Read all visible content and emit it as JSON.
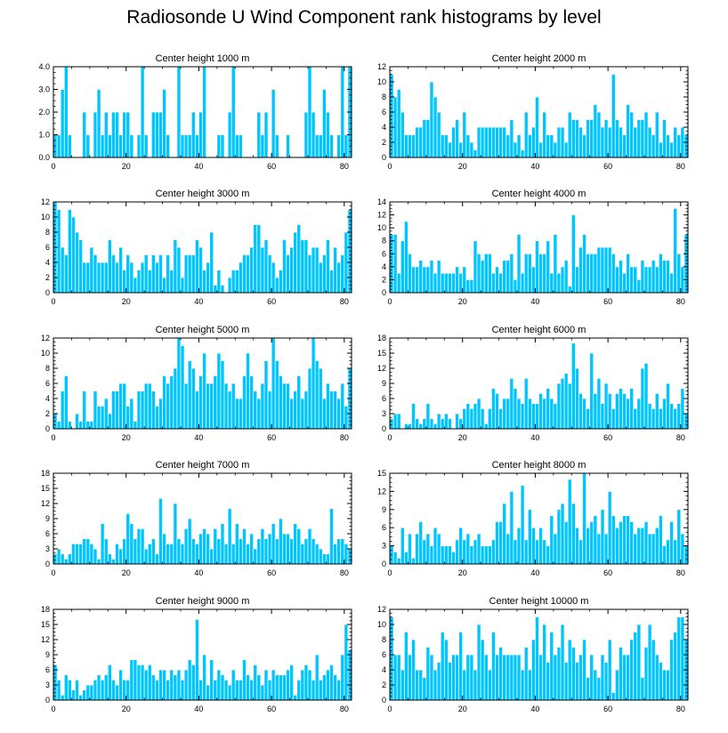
{
  "title": "Radiosonde U Wind Component rank histograms by level",
  "colors": {
    "bar": "#00c5ff",
    "bar_edge": "#ffffff",
    "axis": "#000000"
  },
  "chart_data": [
    {
      "type": "bar",
      "title": "Center height 1000 m",
      "x_start": 0,
      "xlim": [
        0,
        82
      ],
      "ylim": [
        0,
        4
      ],
      "xticks": [
        0,
        20,
        40,
        60,
        80
      ],
      "yticks": [
        0,
        1,
        2,
        3,
        4
      ],
      "ytick_labels": [
        "0.0",
        "1.0",
        "2.0",
        "3.0",
        "4.0"
      ],
      "values": [
        1,
        1,
        3,
        4,
        1,
        0,
        0,
        0,
        2,
        1,
        0,
        2,
        3,
        1,
        2,
        1,
        2,
        2,
        1,
        2,
        2,
        1,
        0,
        1,
        4,
        1,
        0,
        2,
        2,
        2,
        3,
        1,
        0,
        0,
        4,
        1,
        1,
        1,
        2,
        1,
        2,
        4,
        0,
        0,
        0,
        1,
        1,
        0,
        2,
        4,
        1,
        1,
        0,
        0,
        0,
        0,
        2,
        1,
        2,
        0,
        3,
        1,
        0,
        0,
        1,
        0,
        0,
        0,
        0,
        2,
        4,
        2,
        1,
        1,
        3,
        2,
        1,
        0,
        1,
        4,
        1,
        4
      ]
    },
    {
      "type": "bar",
      "title": "Center height 2000 m",
      "x_start": 0,
      "xlim": [
        0,
        82
      ],
      "ylim": [
        0,
        12
      ],
      "xticks": [
        0,
        20,
        40,
        60,
        80
      ],
      "yticks": [
        0,
        2,
        4,
        6,
        8,
        10,
        12
      ],
      "ytick_labels": [
        "0",
        "2",
        "4",
        "6",
        "8",
        "10",
        "12"
      ],
      "values": [
        11,
        8,
        9,
        6,
        3,
        3,
        3,
        4,
        4,
        5,
        5,
        10,
        8,
        6,
        3,
        3,
        2,
        4,
        5,
        2,
        6,
        3,
        2,
        1,
        4,
        4,
        4,
        4,
        4,
        4,
        4,
        4,
        3,
        5,
        2,
        3,
        1,
        6,
        3,
        4,
        8,
        2,
        6,
        3,
        3,
        2,
        4,
        4,
        2,
        6,
        5,
        5,
        4,
        3,
        5,
        5,
        7,
        6,
        4,
        5,
        4,
        11,
        5,
        4,
        3,
        7,
        6,
        4,
        5,
        5,
        6,
        4,
        3,
        6,
        2,
        5,
        3,
        2,
        4,
        3,
        4,
        3
      ]
    },
    {
      "type": "bar",
      "title": "Center height 3000 m",
      "x_start": 0,
      "xlim": [
        0,
        82
      ],
      "ylim": [
        0,
        12
      ],
      "xticks": [
        0,
        20,
        40,
        60,
        80
      ],
      "yticks": [
        0,
        2,
        4,
        6,
        8,
        10,
        12
      ],
      "ytick_labels": [
        "0",
        "2",
        "4",
        "6",
        "8",
        "10",
        "12"
      ],
      "values": [
        12,
        11,
        6,
        5,
        11,
        10,
        8,
        7,
        4,
        4,
        6,
        5,
        4,
        4,
        4,
        7,
        5,
        4,
        6,
        3,
        5,
        4,
        2,
        3,
        4,
        5,
        3,
        5,
        4,
        5,
        2,
        5,
        3,
        7,
        6,
        2,
        5,
        5,
        5,
        7,
        6,
        3,
        4,
        8,
        1,
        3,
        1,
        0,
        2,
        3,
        3,
        4,
        5,
        5,
        6,
        9,
        9,
        6,
        7,
        5,
        4,
        2,
        3,
        7,
        5,
        6,
        8,
        9,
        7,
        7,
        5,
        6,
        6,
        4,
        5,
        7,
        3,
        6,
        4,
        5,
        8,
        11
      ]
    },
    {
      "type": "bar",
      "title": "Center height 4000 m",
      "x_start": 0,
      "xlim": [
        0,
        82
      ],
      "ylim": [
        0,
        14
      ],
      "xticks": [
        0,
        20,
        40,
        60,
        80
      ],
      "yticks": [
        0,
        2,
        4,
        6,
        8,
        10,
        12,
        14
      ],
      "ytick_labels": [
        "0",
        "2",
        "4",
        "6",
        "8",
        "10",
        "12",
        "14"
      ],
      "values": [
        9,
        9,
        3,
        8,
        11,
        6,
        4,
        4,
        5,
        4,
        4,
        5,
        3,
        5,
        3,
        3,
        3,
        3,
        4,
        3,
        4,
        2,
        2,
        8,
        6,
        5,
        6,
        6,
        3,
        4,
        3,
        5,
        5,
        6,
        2,
        9,
        3,
        6,
        6,
        4,
        8,
        6,
        6,
        8,
        3,
        9,
        3,
        4,
        5,
        1,
        12,
        4,
        7,
        9,
        6,
        6,
        6,
        7,
        7,
        7,
        7,
        6,
        4,
        5,
        3,
        6,
        4,
        4,
        2,
        5,
        4,
        4,
        5,
        4,
        6,
        5,
        5,
        3,
        13,
        6,
        4,
        9
      ]
    },
    {
      "type": "bar",
      "title": "Center height 5000 m",
      "x_start": 0,
      "xlim": [
        0,
        82
      ],
      "ylim": [
        0,
        12
      ],
      "xticks": [
        0,
        20,
        40,
        60,
        80
      ],
      "yticks": [
        0,
        2,
        4,
        6,
        8,
        10,
        12
      ],
      "ytick_labels": [
        "0",
        "2",
        "4",
        "6",
        "8",
        "10",
        "12"
      ],
      "values": [
        2,
        1,
        5,
        7,
        1,
        0,
        2,
        1,
        5,
        1,
        1,
        5,
        3,
        3,
        4,
        2,
        5,
        5,
        6,
        6,
        3,
        4,
        1,
        5,
        5,
        6,
        6,
        5,
        3,
        4,
        7,
        6,
        7,
        8,
        12,
        11,
        6,
        9,
        8,
        5,
        7,
        10,
        6,
        6,
        7,
        10,
        9,
        6,
        5,
        6,
        4,
        4,
        7,
        10,
        7,
        5,
        4,
        6,
        9,
        5,
        12,
        9,
        7,
        6,
        6,
        4,
        5,
        7,
        4,
        5,
        8,
        12,
        9,
        8,
        4,
        6,
        5,
        5,
        4,
        6,
        3,
        8
      ]
    },
    {
      "type": "bar",
      "title": "Center height 6000 m",
      "x_start": 0,
      "xlim": [
        0,
        82
      ],
      "ylim": [
        0,
        18
      ],
      "xticks": [
        0,
        20,
        40,
        60,
        80
      ],
      "yticks": [
        0,
        3,
        6,
        9,
        12,
        15,
        18
      ],
      "ytick_labels": [
        "0",
        "3",
        "6",
        "9",
        "12",
        "15",
        "18"
      ],
      "values": [
        2,
        3,
        3,
        0,
        1,
        1,
        5,
        2,
        1,
        2,
        5,
        2,
        1,
        3,
        2,
        3,
        2,
        0,
        3,
        2,
        4,
        5,
        4,
        5,
        6,
        4,
        1,
        4,
        8,
        7,
        4,
        6,
        6,
        10,
        8,
        6,
        5,
        10,
        6,
        5,
        5,
        7,
        6,
        8,
        6,
        5,
        9,
        10,
        11,
        9,
        17,
        12,
        7,
        6,
        4,
        15,
        7,
        10,
        5,
        9,
        7,
        4,
        7,
        8,
        7,
        6,
        8,
        4,
        6,
        12,
        13,
        5,
        4,
        7,
        4,
        6,
        9,
        5,
        4,
        5,
        8,
        3
      ]
    },
    {
      "type": "bar",
      "title": "Center height 7000 m",
      "x_start": 0,
      "xlim": [
        0,
        82
      ],
      "ylim": [
        0,
        18
      ],
      "xticks": [
        0,
        20,
        40,
        60,
        80
      ],
      "yticks": [
        0,
        3,
        6,
        9,
        12,
        15,
        18
      ],
      "ytick_labels": [
        "0",
        "3",
        "6",
        "9",
        "12",
        "15",
        "18"
      ],
      "values": [
        2,
        3,
        2,
        1,
        2,
        4,
        4,
        4,
        5,
        5,
        4,
        3,
        1,
        8,
        5,
        2,
        1,
        4,
        3,
        5,
        10,
        8,
        5,
        7,
        7,
        3,
        4,
        5,
        2,
        13,
        6,
        4,
        4,
        12,
        5,
        4,
        7,
        9,
        5,
        4,
        6,
        7,
        6,
        3,
        7,
        5,
        8,
        4,
        11,
        4,
        8,
        5,
        7,
        4,
        6,
        3,
        5,
        7,
        5,
        6,
        8,
        5,
        9,
        6,
        6,
        5,
        8,
        7,
        4,
        5,
        7,
        5,
        4,
        3,
        2,
        2,
        11,
        4,
        5,
        5,
        4,
        3
      ]
    },
    {
      "type": "bar",
      "title": "Center height 8000 m",
      "x_start": 0,
      "xlim": [
        0,
        82
      ],
      "ylim": [
        0,
        15
      ],
      "xticks": [
        0,
        20,
        40,
        60,
        80
      ],
      "yticks": [
        0,
        3,
        6,
        9,
        12,
        15
      ],
      "ytick_labels": [
        "0",
        "3",
        "6",
        "9",
        "12",
        "15"
      ],
      "values": [
        3,
        2,
        1,
        6,
        2,
        5,
        1,
        5,
        7,
        4,
        5,
        3,
        6,
        5,
        3,
        3,
        3,
        2,
        4,
        6,
        4,
        5,
        3,
        4,
        5,
        3,
        3,
        3,
        4,
        7,
        7,
        10,
        5,
        12,
        4,
        6,
        13,
        4,
        9,
        6,
        4,
        6,
        4,
        3,
        8,
        5,
        9,
        10,
        7,
        14,
        10,
        6,
        4,
        15,
        6,
        7,
        8,
        5,
        9,
        5,
        12,
        8,
        6,
        7,
        8,
        8,
        7,
        5,
        6,
        6,
        7,
        5,
        5,
        6,
        8,
        3,
        4,
        7,
        4,
        9,
        5,
        3
      ]
    },
    {
      "type": "bar",
      "title": "Center height 9000 m",
      "x_start": 0,
      "xlim": [
        0,
        82
      ],
      "ylim": [
        0,
        18
      ],
      "xticks": [
        0,
        20,
        40,
        60,
        80
      ],
      "yticks": [
        0,
        3,
        6,
        9,
        12,
        15,
        18
      ],
      "ytick_labels": [
        "0",
        "3",
        "6",
        "9",
        "12",
        "15",
        "18"
      ],
      "values": [
        7,
        4,
        1,
        5,
        4,
        2,
        4,
        1,
        2,
        3,
        3,
        4,
        5,
        4,
        5,
        7,
        4,
        3,
        6,
        4,
        4,
        8,
        8,
        7,
        7,
        6,
        7,
        5,
        4,
        6,
        6,
        4,
        6,
        5,
        6,
        4,
        6,
        8,
        7,
        16,
        4,
        9,
        3,
        8,
        4,
        6,
        5,
        4,
        3,
        6,
        4,
        4,
        8,
        5,
        4,
        7,
        5,
        3,
        6,
        4,
        6,
        5,
        5,
        5,
        6,
        7,
        1,
        4,
        6,
        7,
        6,
        4,
        9,
        4,
        5,
        6,
        7,
        5,
        4,
        9,
        15,
        10
      ]
    },
    {
      "type": "bar",
      "title": "Center height 10000 m",
      "x_start": 0,
      "xlim": [
        0,
        82
      ],
      "ylim": [
        0,
        12
      ],
      "xticks": [
        0,
        20,
        40,
        60,
        80
      ],
      "yticks": [
        0,
        2,
        4,
        6,
        8,
        10,
        12
      ],
      "ytick_labels": [
        "0",
        "2",
        "4",
        "6",
        "8",
        "10",
        "12"
      ],
      "values": [
        11,
        6,
        6,
        4,
        9,
        6,
        8,
        4,
        4,
        3,
        7,
        6,
        4,
        5,
        9,
        8,
        5,
        6,
        6,
        9,
        4,
        6,
        6,
        4,
        10,
        8,
        6,
        4,
        9,
        6,
        7,
        6,
        6,
        6,
        6,
        6,
        4,
        7,
        4,
        8,
        11,
        6,
        10,
        5,
        9,
        6,
        7,
        10,
        5,
        8,
        7,
        5,
        6,
        8,
        3,
        6,
        4,
        3,
        6,
        5,
        8,
        1,
        4,
        7,
        6,
        6,
        8,
        9,
        10,
        3,
        7,
        10,
        8,
        6,
        5,
        4,
        4,
        8,
        9,
        11,
        11,
        8
      ]
    }
  ]
}
